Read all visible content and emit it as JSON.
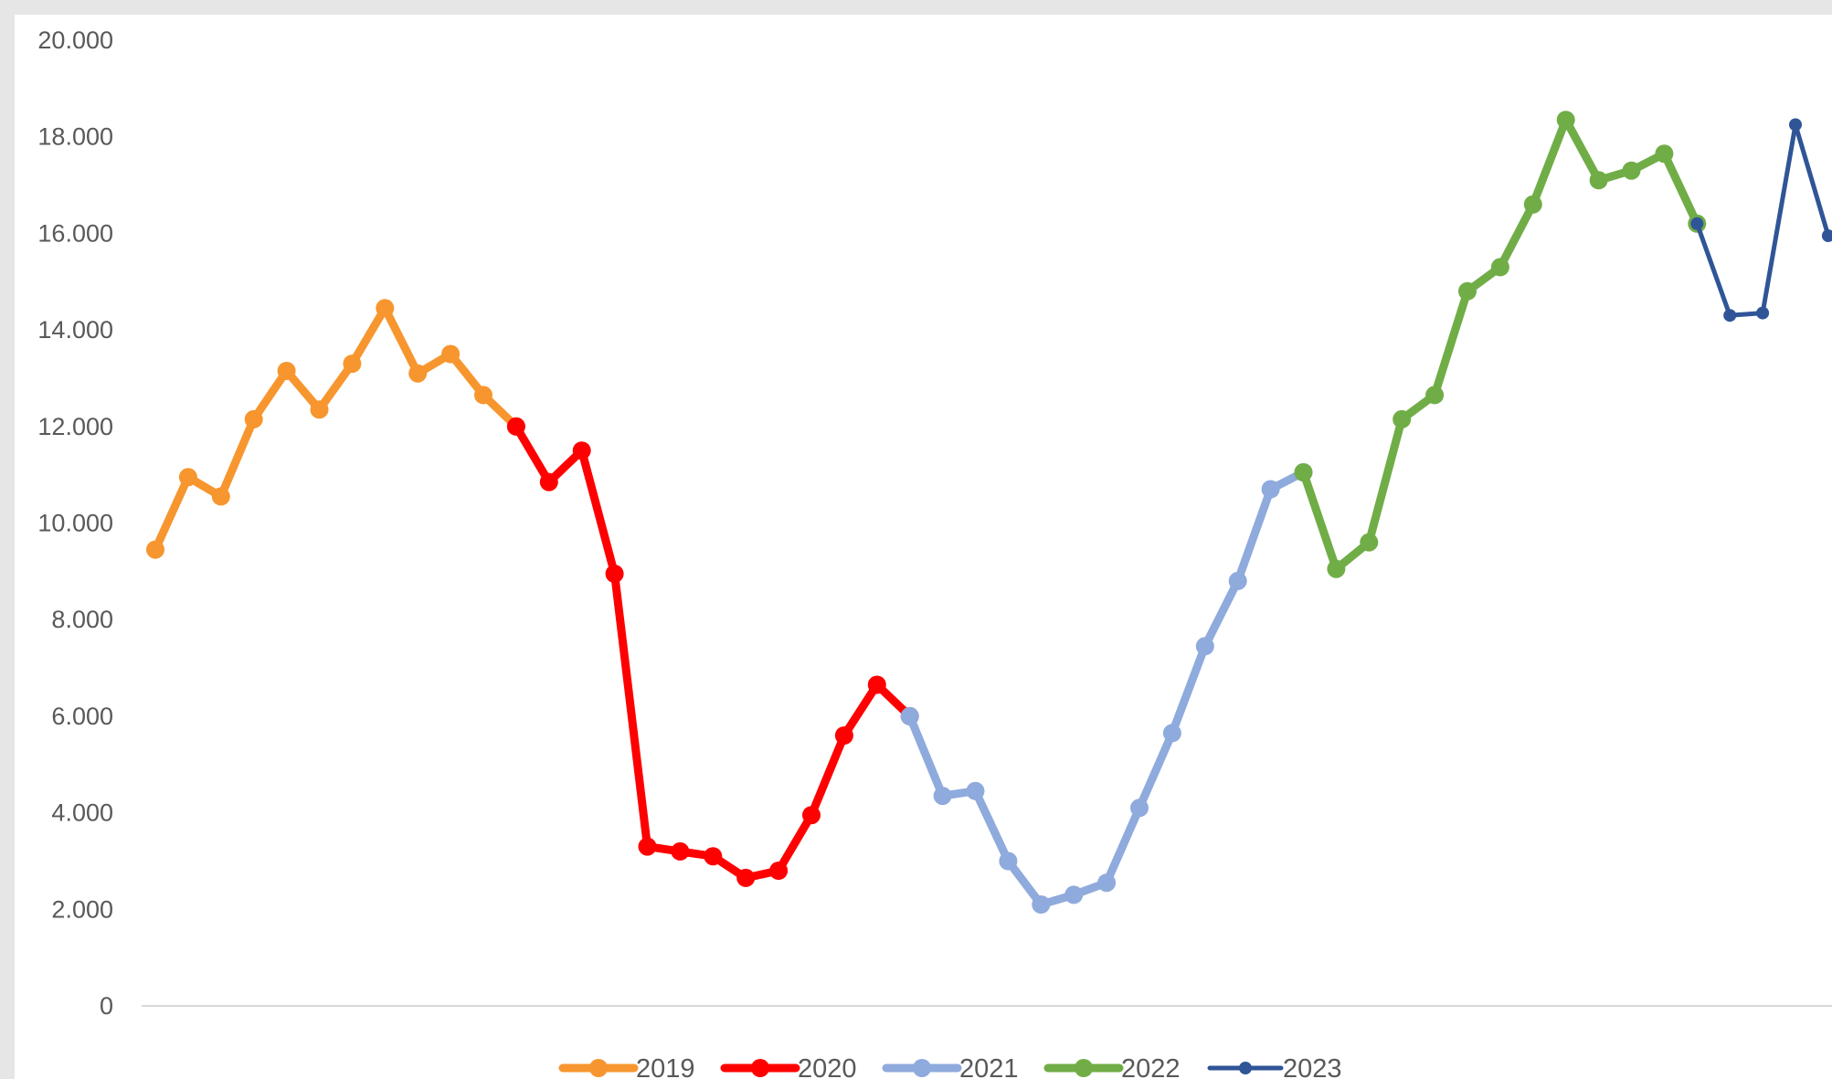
{
  "chart_data": {
    "type": "line",
    "title": "",
    "xlabel": "",
    "ylabel": "",
    "ylim": [
      0,
      20000
    ],
    "y_ticks": [
      {
        "value": 0,
        "label": "0"
      },
      {
        "value": 2000,
        "label": "2.000"
      },
      {
        "value": 4000,
        "label": "4.000"
      },
      {
        "value": 6000,
        "label": "6.000"
      },
      {
        "value": 8000,
        "label": "8.000"
      },
      {
        "value": 10000,
        "label": "10.000"
      },
      {
        "value": 12000,
        "label": "12.000"
      },
      {
        "value": 14000,
        "label": "14.000"
      },
      {
        "value": 16000,
        "label": "16.000"
      },
      {
        "value": 18000,
        "label": "18.000"
      },
      {
        "value": 20000,
        "label": "20.000"
      }
    ],
    "grid": false,
    "legend_position": "bottom",
    "x_count": 54,
    "series": [
      {
        "name": "2019",
        "color": "#f7962e",
        "start_index": 0,
        "values": [
          9450,
          10950,
          10550,
          12150,
          13150,
          12350,
          13300,
          14450,
          13100,
          13500,
          12650,
          12000
        ]
      },
      {
        "name": "2020",
        "color": "#ff0000",
        "start_index": 11,
        "values": [
          12000,
          10850,
          11500,
          8950,
          3300,
          3200,
          3100,
          2650,
          2800,
          3950,
          5600,
          6650,
          6000
        ]
      },
      {
        "name": "2021",
        "color": "#8faadc",
        "start_index": 23,
        "values": [
          6000,
          4350,
          4450,
          3000,
          2100,
          2300,
          2550,
          4100,
          5650,
          7450,
          8800,
          10700,
          11050
        ]
      },
      {
        "name": "2022",
        "color": "#70ad47",
        "start_index": 35,
        "values": [
          11050,
          9050,
          9600,
          12150,
          12650,
          14800,
          15300,
          16600,
          18350,
          17100,
          17300,
          17650,
          16200
        ]
      },
      {
        "name": "2023",
        "color": "#2f5597",
        "start_index": 47,
        "values": [
          16200,
          14300,
          14350,
          18250,
          15950
        ]
      }
    ]
  }
}
